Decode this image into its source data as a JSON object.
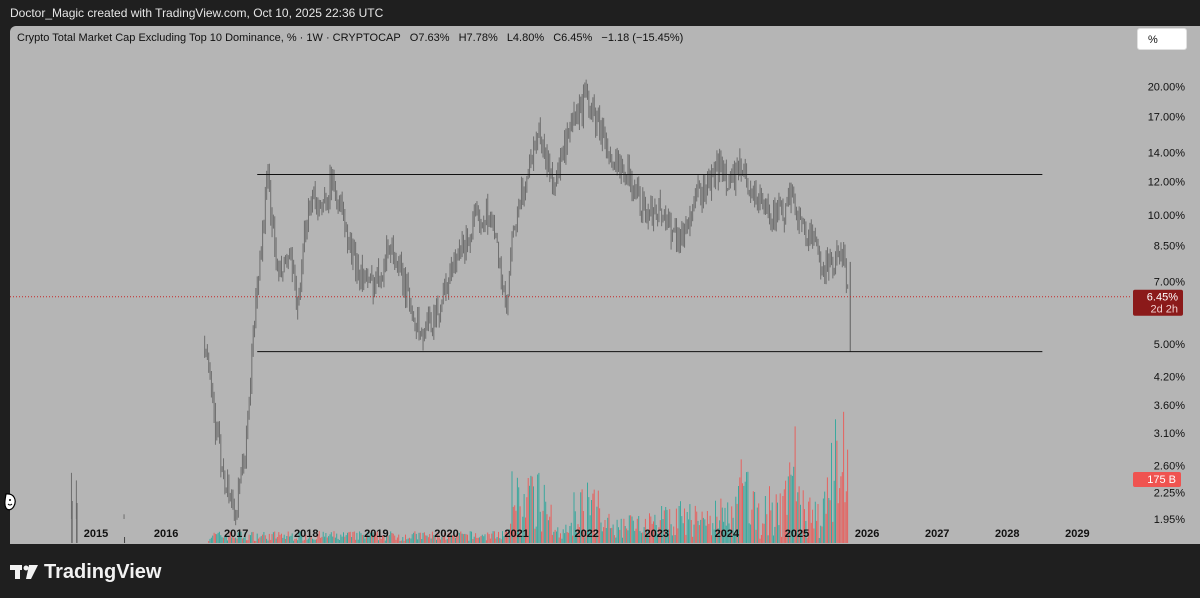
{
  "header": {
    "credit": "Doctor_Magic created with TradingView.com, Oct 10, 2025 22:36 UTC"
  },
  "legend": {
    "title": "Crypto Total Market Cap Excluding Top 10 Dominance, % · 1W · CRYPTOCAP",
    "open": "O7.63%",
    "high": "H7.78%",
    "low": "L4.80%",
    "close": "C6.45%",
    "change": "−1.18 (−15.45%)"
  },
  "toolbar": {
    "unit_button": "%"
  },
  "footer": {
    "brand": "TradingView"
  },
  "price_label": {
    "value": "6.45%",
    "countdown": "2d 2h"
  },
  "volume_label": "175 B",
  "colors": {
    "up": "#26a69a",
    "down": "#ef5350",
    "price_line": "#c62828",
    "background": "#b5b5b5"
  },
  "icons": [
    "tradingview-logo-icon",
    "face-sticker-icon"
  ],
  "chart_data": {
    "type": "candlestick",
    "series_interval": "1W",
    "y_scale": "log",
    "x_ticks": [
      "2015",
      "2016",
      "2017",
      "2018",
      "2019",
      "2020",
      "2021",
      "2022",
      "2023",
      "2024",
      "2025",
      "2026",
      "2027",
      "2028",
      "2029"
    ],
    "y_ticks": [
      "20.00%",
      "17.00%",
      "14.00%",
      "12.00%",
      "10.00%",
      "8.50%",
      "7.00%",
      "5.00%",
      "4.20%",
      "3.60%",
      "3.10%",
      "2.60%",
      "2.25%",
      "1.95%"
    ],
    "ylim": [
      1.95,
      21.5
    ],
    "last_close": 6.45,
    "horizontal_lines": [
      {
        "name": "resistance",
        "value": 12.45,
        "from": 2017.3,
        "to": 2028.5
      },
      {
        "name": "support",
        "value": 4.8,
        "from": 2017.3,
        "to": 2028.5
      }
    ],
    "price_path": [
      [
        2014.6,
        1.9
      ],
      [
        2016.5,
        1.9
      ],
      [
        2016.55,
        5.0
      ],
      [
        2016.7,
        3.2
      ],
      [
        2016.85,
        2.4
      ],
      [
        2017.0,
        2.0
      ],
      [
        2017.15,
        3.0
      ],
      [
        2017.25,
        5.5
      ],
      [
        2017.45,
        12.3
      ],
      [
        2017.6,
        7.0
      ],
      [
        2017.75,
        8.0
      ],
      [
        2017.9,
        6.0
      ],
      [
        2018.0,
        10.0
      ],
      [
        2018.1,
        11.5
      ],
      [
        2018.2,
        10.0
      ],
      [
        2018.35,
        12.0
      ],
      [
        2018.5,
        10.5
      ],
      [
        2018.6,
        8.5
      ],
      [
        2018.75,
        7.5
      ],
      [
        2018.9,
        6.8
      ],
      [
        2019.05,
        7.4
      ],
      [
        2019.2,
        8.6
      ],
      [
        2019.35,
        7.2
      ],
      [
        2019.55,
        5.8
      ],
      [
        2019.65,
        5.2
      ],
      [
        2019.75,
        5.6
      ],
      [
        2019.9,
        6.1
      ],
      [
        2020.0,
        6.9
      ],
      [
        2020.2,
        8.2
      ],
      [
        2020.4,
        9.5
      ],
      [
        2020.6,
        10.3
      ],
      [
        2020.75,
        8.0
      ],
      [
        2020.85,
        5.8
      ],
      [
        2020.95,
        9.0
      ],
      [
        2021.1,
        11.5
      ],
      [
        2021.2,
        13.5
      ],
      [
        2021.3,
        16.0
      ],
      [
        2021.45,
        13.0
      ],
      [
        2021.55,
        12.0
      ],
      [
        2021.7,
        14.5
      ],
      [
        2021.85,
        17.0
      ],
      [
        2022.0,
        19.0
      ],
      [
        2022.1,
        17.0
      ],
      [
        2022.25,
        15.5
      ],
      [
        2022.35,
        12.5
      ],
      [
        2022.5,
        13.5
      ],
      [
        2022.7,
        11.5
      ],
      [
        2022.85,
        10.0
      ],
      [
        2023.0,
        10.5
      ],
      [
        2023.2,
        9.5
      ],
      [
        2023.35,
        8.8
      ],
      [
        2023.45,
        9.8
      ],
      [
        2023.6,
        11.2
      ],
      [
        2023.75,
        12.0
      ],
      [
        2023.9,
        13.0
      ],
      [
        2024.05,
        12.0
      ],
      [
        2024.2,
        12.8
      ],
      [
        2024.35,
        11.5
      ],
      [
        2024.5,
        10.5
      ],
      [
        2024.65,
        10.2
      ],
      [
        2024.8,
        10.0
      ],
      [
        2024.95,
        11.3
      ],
      [
        2025.05,
        9.5
      ],
      [
        2025.2,
        8.8
      ],
      [
        2025.35,
        7.8
      ],
      [
        2025.5,
        7.5
      ],
      [
        2025.6,
        8.2
      ],
      [
        2025.68,
        7.6
      ],
      [
        2025.75,
        6.45
      ]
    ],
    "last_candle": {
      "open": 7.63,
      "high": 7.78,
      "low": 4.8,
      "close": 6.45
    }
  }
}
